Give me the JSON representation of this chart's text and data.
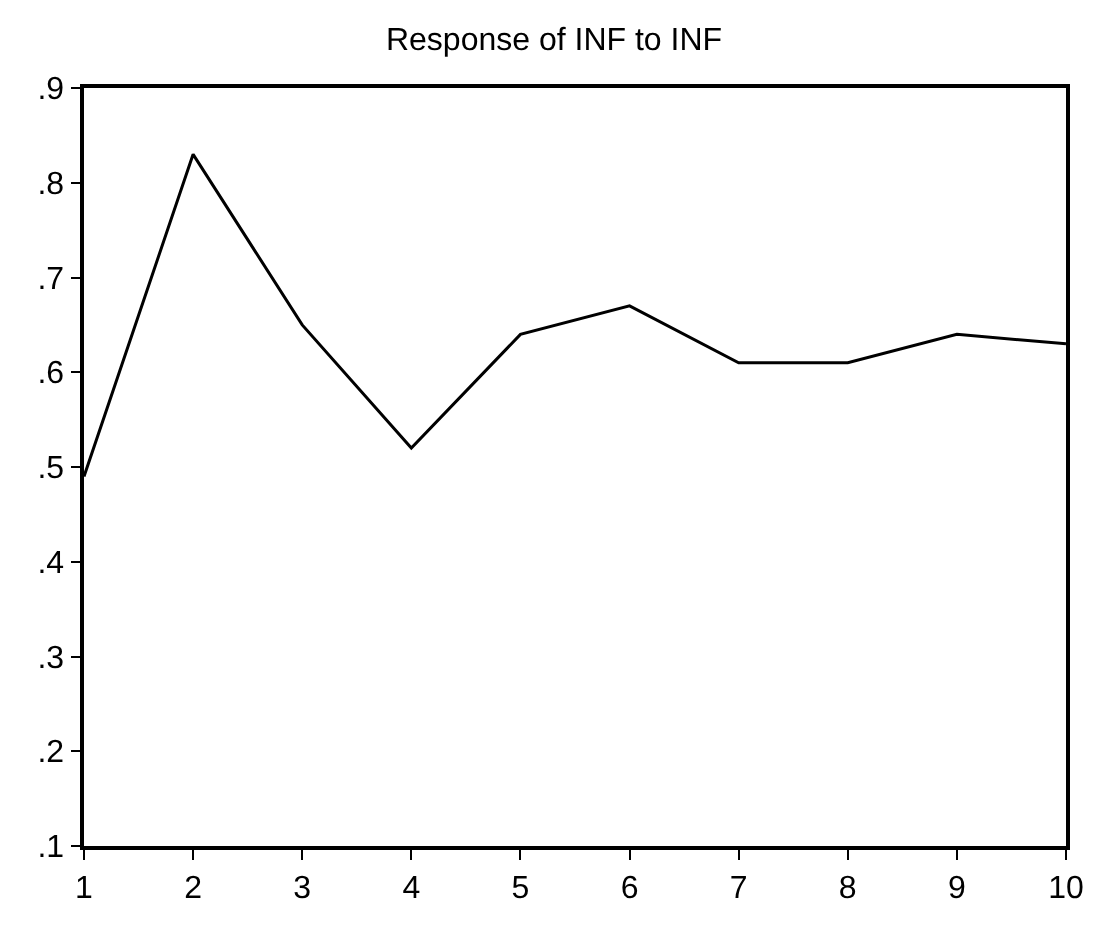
{
  "chart_data": {
    "type": "line",
    "title": "Response of INF to INF",
    "x": [
      1,
      2,
      3,
      4,
      5,
      6,
      7,
      8,
      9,
      10
    ],
    "series": [
      {
        "color": "#000000",
        "values": [
          0.49,
          0.83,
          0.65,
          0.52,
          0.64,
          0.67,
          0.61,
          0.61,
          0.64,
          0.63
        ]
      }
    ],
    "xlim": [
      1,
      10
    ],
    "xticks": [
      1,
      2,
      3,
      4,
      5,
      6,
      7,
      8,
      9,
      10
    ],
    "ylim": [
      0.1,
      0.9
    ],
    "yticks": [
      {
        "value": 0.1,
        "label": ".1"
      },
      {
        "value": 0.2,
        "label": ".2"
      },
      {
        "value": 0.3,
        "label": ".3"
      },
      {
        "value": 0.4,
        "label": ".4"
      },
      {
        "value": 0.5,
        "label": ".5"
      },
      {
        "value": 0.6,
        "label": ".6"
      },
      {
        "value": 0.7,
        "label": ".7"
      },
      {
        "value": 0.8,
        "label": ".8"
      },
      {
        "value": 0.9,
        "label": ".9"
      }
    ],
    "marker": "none",
    "line_style": "solid"
  }
}
